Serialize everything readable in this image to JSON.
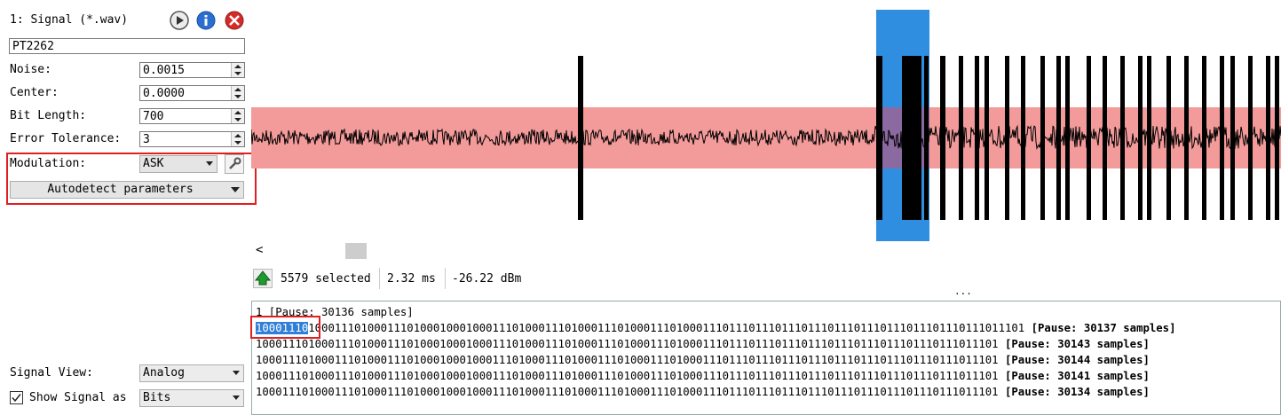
{
  "header": {
    "title": "1: Signal (*.wav)"
  },
  "settings": {
    "name": "PT2262",
    "fields": [
      {
        "label": "Noise:",
        "value": "0.0015"
      },
      {
        "label": "Center:",
        "value": "0.0000"
      },
      {
        "label": "Bit Length:",
        "value": "700"
      },
      {
        "label": "Error Tolerance:",
        "value": "3"
      }
    ],
    "modulation": {
      "label": "Modulation:",
      "value": "ASK"
    },
    "autodetect": "Autodetect parameters",
    "signal_view": {
      "label": "Signal View:",
      "value": "Analog"
    },
    "show_signal": {
      "label": "Show Signal as",
      "value": "Bits"
    }
  },
  "status": {
    "selected": "5579 selected",
    "duration": "2.32 ms",
    "power": "-26.22 dBm"
  },
  "output": {
    "first_line": "1 [Pause: 30136 samples]",
    "rows": [
      {
        "selected": "10001110",
        "bits": "1000111010001110100010001000111010001110100011101000111010001110111011101110111011101110111011101110111011101",
        "pause": "[Pause: 30137 samples]"
      },
      {
        "bits": "10001110100011101000111010001000100011101000111010001110100011101000111011101110111011101110111011101110111011101",
        "pause": "[Pause: 30143 samples]"
      },
      {
        "bits": "10001110100011101000111010001000100011101000111010001110100011101000111011101110111011101110111011101110111011101",
        "pause": "[Pause: 30144 samples]"
      },
      {
        "bits": "10001110100011101000111010001000100011101000111010001110100011101000111011101110111011101110111011101110111011101",
        "pause": "[Pause: 30141 samples]"
      },
      {
        "bits": "10001110100011101000111010001000100011101000111010001110100011101000111011101110111011101110111011101110111011101",
        "pause": "[Pause: 30134 samples]"
      }
    ]
  }
}
